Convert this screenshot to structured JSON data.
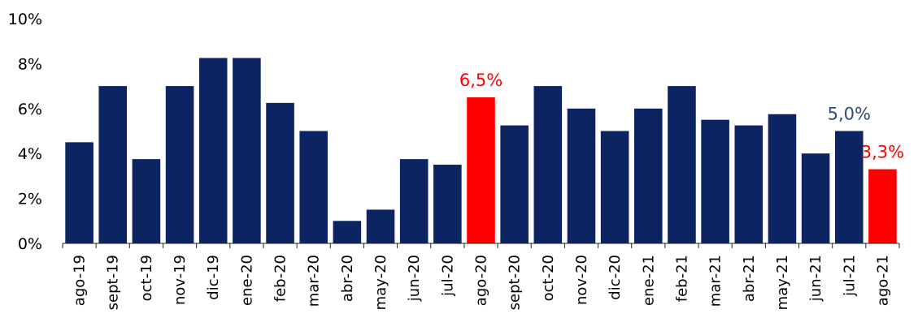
{
  "chart_data": {
    "type": "bar",
    "categories": [
      "ago-19",
      "sept-19",
      "oct-19",
      "nov-19",
      "dic-19",
      "ene-20",
      "feb-20",
      "mar-20",
      "abr-20",
      "may-20",
      "jun-20",
      "jul-20",
      "ago-20",
      "sept-20",
      "oct-20",
      "nov-20",
      "dic-20",
      "ene-21",
      "feb-21",
      "mar-21",
      "abr-21",
      "may-21",
      "jun-21",
      "jul-21",
      "ago-21"
    ],
    "values": [
      4.5,
      7.0,
      3.75,
      7.0,
      8.25,
      8.25,
      6.25,
      5.0,
      1.0,
      1.5,
      3.75,
      3.5,
      6.5,
      5.25,
      7.0,
      6.0,
      5.0,
      6.0,
      7.0,
      5.5,
      5.25,
      5.75,
      4.0,
      5.0,
      3.3
    ],
    "highlighted": [
      "ago-20",
      "ago-21"
    ],
    "yticks": [
      "0%",
      "2%",
      "4%",
      "6%",
      "8%",
      "10%"
    ],
    "ylim": [
      0,
      10
    ],
    "grid": false,
    "legend": false,
    "annotations": [
      {
        "category": "ago-20",
        "text": "6,5%",
        "color": "#ff0000"
      },
      {
        "category": "jul-21",
        "text": "5,0%",
        "color": "#2f4a7a"
      },
      {
        "category": "ago-21",
        "text": "3,3%",
        "color": "#ff0000"
      }
    ],
    "colors": {
      "bar": "#0c2461",
      "highlight": "#ff0000",
      "axis": "#222222"
    }
  }
}
